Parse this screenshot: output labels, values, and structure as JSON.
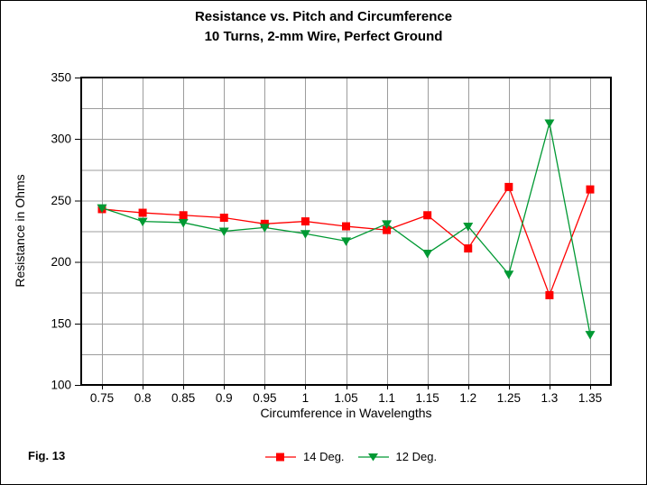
{
  "title": {
    "line1": "Resistance vs. Pitch and Circumference",
    "line2": "10 Turns, 2-mm Wire, Perfect Ground"
  },
  "figure_label": "Fig. 13",
  "colors": {
    "series_14deg": "#ff0000",
    "series_12deg": "#009933",
    "gridline": "#9c9c9c",
    "plot_border": "#000000",
    "background": "#ffffff",
    "text": "#000000"
  },
  "chart_data": {
    "type": "line",
    "title": "Resistance vs. Pitch and Circumference",
    "subtitle": "10 Turns, 2-mm Wire, Perfect Ground",
    "xlabel": "Circumference in Wavelengths",
    "ylabel": "Resistance in Ohms",
    "x": [
      0.75,
      0.8,
      0.85,
      0.9,
      0.95,
      1,
      1.05,
      1.1,
      1.15,
      1.2,
      1.25,
      1.3,
      1.35
    ],
    "x_tick_labels": [
      "0.75",
      "0.8",
      "0.85",
      "0.9",
      "0.95",
      "1",
      "1.05",
      "1.1",
      "1.15",
      "1.2",
      "1.25",
      "1.3",
      "1.35"
    ],
    "ylim": [
      100,
      350
    ],
    "y_ticks": [
      100,
      150,
      200,
      250,
      300,
      350
    ],
    "y_tick_labels": [
      "100",
      "150",
      "200",
      "250",
      "300",
      "350"
    ],
    "grid": {
      "enabled": true,
      "x_every": 0.05,
      "y_every": 25
    },
    "legend_position": "bottom-center",
    "series": [
      {
        "name": "14 Deg.",
        "color": "#ff0000",
        "marker": "square",
        "values": [
          243,
          240,
          238,
          236,
          231,
          233,
          229,
          226,
          238,
          211,
          261,
          173,
          259
        ]
      },
      {
        "name": "12 Deg.",
        "color": "#009933",
        "marker": "triangle-down",
        "values": [
          244,
          233,
          232,
          225,
          228,
          223,
          217,
          231,
          207,
          229,
          190,
          313,
          141
        ]
      }
    ]
  }
}
